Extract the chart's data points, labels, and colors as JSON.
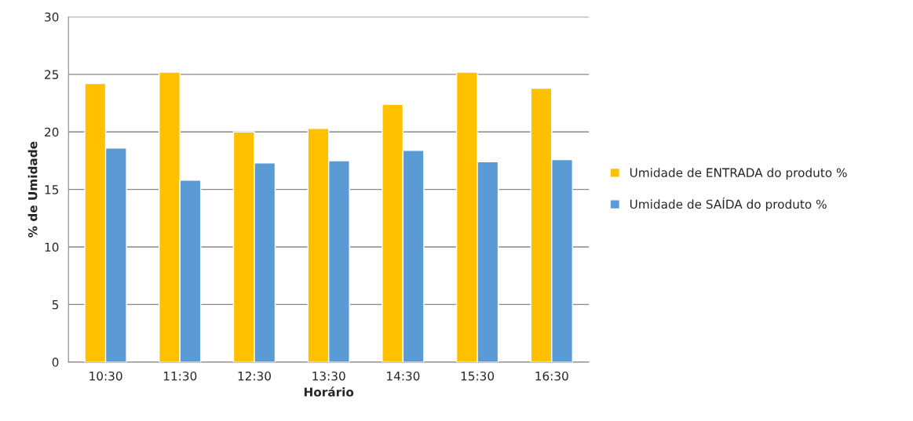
{
  "chart_data": {
    "type": "bar",
    "xlabel": "Horário",
    "ylabel": "% de Umidade",
    "categories": [
      "10:30",
      "11:30",
      "12:30",
      "13:30",
      "14:30",
      "15:30",
      "16:30"
    ],
    "series": [
      {
        "name": "Umidade de ENTRADA do produto %",
        "color": "#ffc000",
        "values": [
          24.2,
          25.2,
          20.0,
          20.3,
          22.4,
          25.2,
          23.8
        ]
      },
      {
        "name": "Umidade de SAÍDA do produto %",
        "color": "#5b9bd5",
        "values": [
          18.6,
          15.8,
          17.3,
          17.5,
          18.4,
          17.4,
          17.6
        ]
      }
    ],
    "ylim": [
      0,
      30
    ],
    "yticks": [
      0,
      5,
      10,
      15,
      20,
      25,
      30
    ],
    "grid": "y",
    "legend": "right"
  }
}
